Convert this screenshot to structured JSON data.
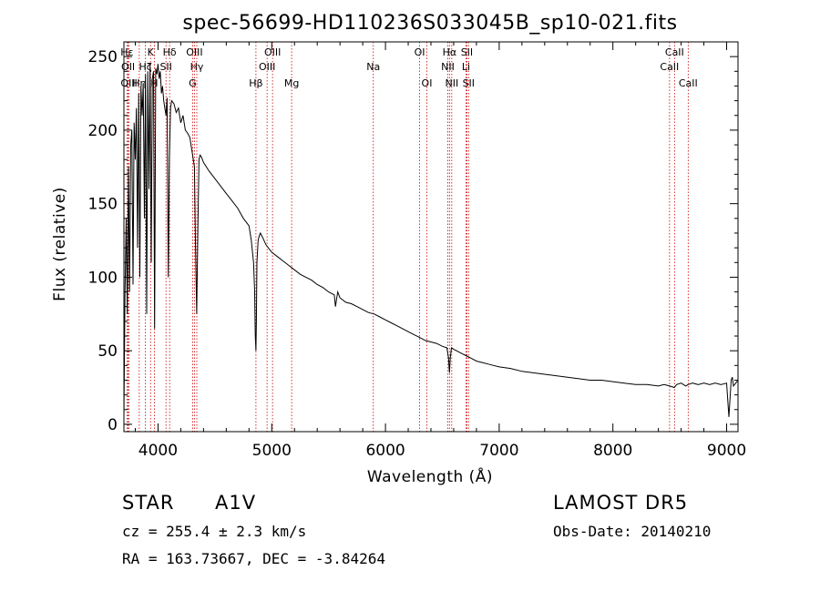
{
  "chart_data": {
    "type": "line",
    "title": "spec-56699-HD110236S033045B_sp10-021.fits",
    "xlabel": "Wavelength (Å)",
    "ylabel": "Flux (relative)",
    "xlim": [
      3700,
      9100
    ],
    "ylim": [
      -5,
      260
    ],
    "xticks": [
      4000,
      5000,
      6000,
      7000,
      8000,
      9000
    ],
    "yticks": [
      0,
      50,
      100,
      150,
      200,
      250
    ],
    "grid": false,
    "line_color": "#000000",
    "marker_color": "#cc0000",
    "series": [
      {
        "x": [
          3700,
          3710,
          3720,
          3730,
          3740,
          3750,
          3760,
          3770,
          3780,
          3790,
          3800,
          3810,
          3820,
          3830,
          3840,
          3850,
          3860,
          3870,
          3880,
          3890,
          3900,
          3910,
          3920,
          3930,
          3940,
          3950,
          3960,
          3970,
          3980,
          3990,
          4000,
          4010,
          4020,
          4030,
          4040,
          4050,
          4060,
          4070,
          4080,
          4090,
          4100,
          4110,
          4120,
          4140,
          4160,
          4180,
          4200,
          4220,
          4240,
          4260,
          4280,
          4300,
          4320,
          4330,
          4340,
          4350,
          4360,
          4370,
          4380,
          4400,
          4450,
          4500,
          4550,
          4600,
          4650,
          4700,
          4750,
          4800,
          4820,
          4840,
          4850,
          4855,
          4861,
          4865,
          4870,
          4880,
          4890,
          4900,
          4920,
          4950,
          5000,
          5050,
          5100,
          5150,
          5200,
          5250,
          5300,
          5350,
          5400,
          5450,
          5500,
          5550,
          5560,
          5570,
          5580,
          5600,
          5650,
          5700,
          5750,
          5800,
          5850,
          5900,
          5950,
          6000,
          6050,
          6100,
          6150,
          6200,
          6250,
          6300,
          6350,
          6400,
          6450,
          6500,
          6540,
          6555,
          6563,
          6570,
          6580,
          6600,
          6650,
          6700,
          6750,
          6800,
          6850,
          6900,
          6950,
          7000,
          7100,
          7200,
          7300,
          7400,
          7500,
          7600,
          7700,
          7800,
          7900,
          8000,
          8100,
          8200,
          8300,
          8400,
          8450,
          8500,
          8540,
          8560,
          8600,
          8640,
          8660,
          8700,
          8750,
          8800,
          8850,
          8900,
          8950,
          9000,
          9020,
          9040,
          9050,
          9060,
          9080,
          9100
        ],
        "values": [
          5,
          90,
          140,
          75,
          175,
          90,
          190,
          200,
          95,
          205,
          180,
          215,
          120,
          225,
          100,
          230,
          210,
          232,
          140,
          238,
          75,
          240,
          160,
          245,
          110,
          235,
          240,
          65,
          242,
          238,
          245,
          235,
          240,
          225,
          230,
          220,
          215,
          210,
          222,
          100,
          180,
          215,
          220,
          218,
          212,
          215,
          205,
          210,
          200,
          198,
          195,
          185,
          175,
          120,
          75,
          130,
          180,
          183,
          182,
          178,
          172,
          167,
          162,
          157,
          152,
          147,
          140,
          135,
          125,
          110,
          90,
          60,
          50,
          70,
          110,
          125,
          128,
          130,
          127,
          122,
          117,
          114,
          111,
          108,
          105,
          102,
          100,
          98,
          95,
          93,
          90,
          88,
          80,
          85,
          90,
          86,
          83,
          82,
          80,
          78,
          76,
          75,
          73,
          71,
          69,
          67,
          65,
          63,
          61,
          59,
          57,
          56,
          55,
          53,
          52,
          45,
          35,
          45,
          52,
          51,
          49,
          47,
          45,
          43,
          42,
          41,
          40,
          39,
          38,
          36,
          35,
          34,
          33,
          32,
          31,
          30,
          30,
          29,
          28,
          27,
          27,
          26,
          27,
          26,
          25,
          27,
          28,
          26,
          27,
          28,
          27,
          28,
          27,
          28,
          27,
          28,
          5,
          30,
          32,
          26,
          28,
          30
        ]
      }
    ],
    "lines": [
      {
        "name": "Hε",
        "wavelength": 3727,
        "row": 0
      },
      {
        "name": "OII",
        "wavelength": 3737,
        "row": 1
      },
      {
        "name": "OIII",
        "wavelength": 3745,
        "row": 2
      },
      {
        "name": "Hη",
        "wavelength": 3835,
        "row": 2
      },
      {
        "name": "Hζ",
        "wavelength": 3889,
        "row": 1
      },
      {
        "name": "K",
        "wavelength": 3934,
        "row": 0
      },
      {
        "name": "H",
        "wavelength": 3968,
        "row": 2
      },
      {
        "name": "SII",
        "wavelength": 4070,
        "row": 1
      },
      {
        "name": "Hδ",
        "wavelength": 4102,
        "row": 0
      },
      {
        "name": "OIII",
        "wavelength": 4320,
        "row": 0
      },
      {
        "name": "Hγ",
        "wavelength": 4341,
        "row": 1
      },
      {
        "name": "G",
        "wavelength": 4304,
        "row": 2
      },
      {
        "name": "Hβ",
        "wavelength": 4861,
        "row": 2
      },
      {
        "name": "OIII",
        "wavelength": 4959,
        "row": 1
      },
      {
        "name": "OIII",
        "wavelength": 5007,
        "row": 0
      },
      {
        "name": "Mg",
        "wavelength": 5175,
        "row": 2
      },
      {
        "name": "Na",
        "wavelength": 5893,
        "row": 1
      },
      {
        "name": "OI",
        "wavelength": 6300,
        "row": 0
      },
      {
        "name": "OI",
        "wavelength": 6364,
        "row": 2
      },
      {
        "name": "Hα",
        "wavelength": 6563,
        "row": 0
      },
      {
        "name": "NII",
        "wavelength": 6548,
        "row": 1
      },
      {
        "name": "NII",
        "wavelength": 6583,
        "row": 2
      },
      {
        "name": "Li",
        "wavelength": 6708,
        "row": 1
      },
      {
        "name": "SII",
        "wavelength": 6716,
        "row": 0
      },
      {
        "name": "SII",
        "wavelength": 6731,
        "row": 2
      },
      {
        "name": "CaII",
        "wavelength": 8498,
        "row": 1
      },
      {
        "name": "CaII",
        "wavelength": 8542,
        "row": 0
      },
      {
        "name": "CaII",
        "wavelength": 8662,
        "row": 2
      }
    ]
  },
  "info": {
    "class_label": "STAR",
    "subclass": "A1V",
    "survey": "LAMOST DR5",
    "redshift_text": "cz = 255.4 ± 2.3 km/s",
    "obs_date_text": "Obs-Date: 20140210",
    "coords_text": "RA = 163.73667, DEC =  -3.84264"
  }
}
